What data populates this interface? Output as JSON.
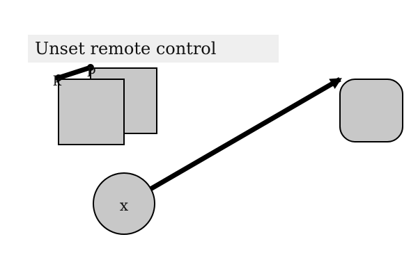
{
  "title": "Unset remote control",
  "labels": {
    "k": "k",
    "p": "p",
    "x": "x"
  },
  "colors": {
    "shape_fill": "#c8c8c8",
    "stroke": "#000000",
    "title_bar_bg": "#efefef"
  }
}
